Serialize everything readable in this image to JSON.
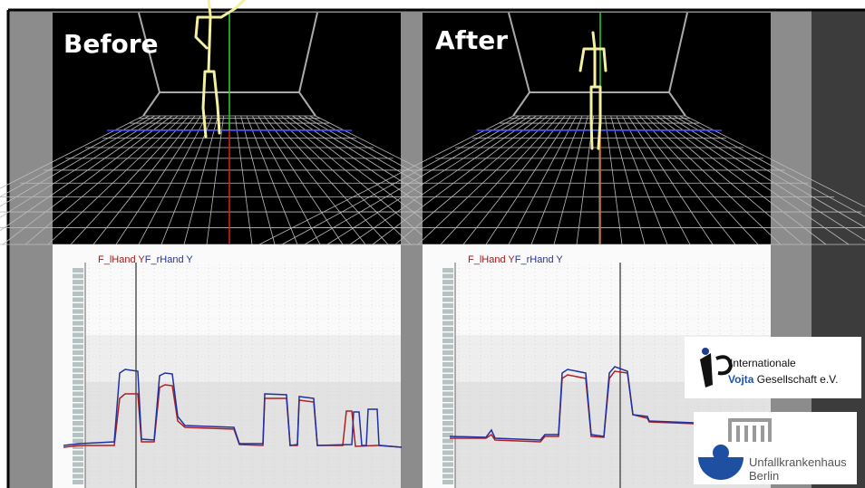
{
  "panels": [
    {
      "label": "Before",
      "legend": [
        "F_lHand Y",
        "F_rHand Y"
      ]
    },
    {
      "label": "After",
      "legend": [
        "F_lHand Y",
        "F_rHand Y"
      ]
    }
  ],
  "logos": {
    "vojta": {
      "line1": "Internationale",
      "name": "Vojta",
      "rest": "Gesellschaft e.V."
    },
    "hospital": {
      "line1": "Unfallkrankenhaus",
      "line2": "Berlin"
    }
  }
}
